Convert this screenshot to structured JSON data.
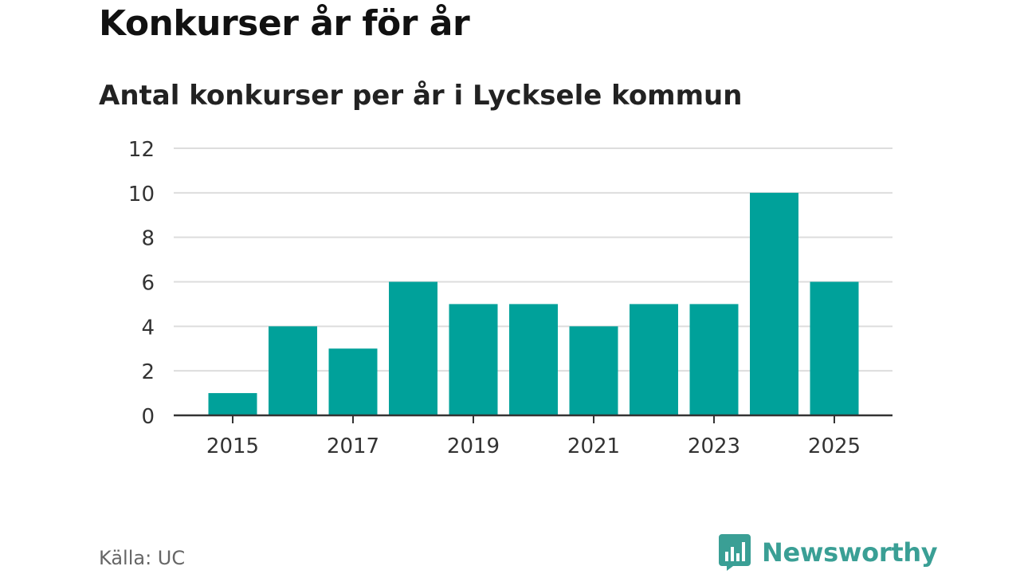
{
  "header": {
    "title": "Konkurser år för år",
    "subtitle": "Antal konkurser per år i Lycksele kommun"
  },
  "footer": {
    "source": "Källa: UC",
    "brand": "Newsworthy",
    "brand_icon": "newsworthy-logo-icon"
  },
  "colors": {
    "bar": "#00a19a",
    "grid": "#dddddd",
    "axis": "#333333",
    "brand": "#3a9f95"
  },
  "chart_data": {
    "type": "bar",
    "title": "Konkurser år för år",
    "subtitle": "Antal konkurser per år i Lycksele kommun",
    "xlabel": "",
    "ylabel": "",
    "categories": [
      2015,
      2016,
      2017,
      2018,
      2019,
      2020,
      2021,
      2022,
      2023,
      2024,
      2025
    ],
    "values": [
      1,
      4,
      3,
      6,
      5,
      5,
      4,
      5,
      5,
      10,
      6
    ],
    "ylim": [
      0,
      12
    ],
    "yticks": [
      0,
      2,
      4,
      6,
      8,
      10,
      12
    ],
    "xticks": [
      2015,
      2017,
      2019,
      2021,
      2023,
      2025
    ],
    "grid": true,
    "legend": "none"
  }
}
